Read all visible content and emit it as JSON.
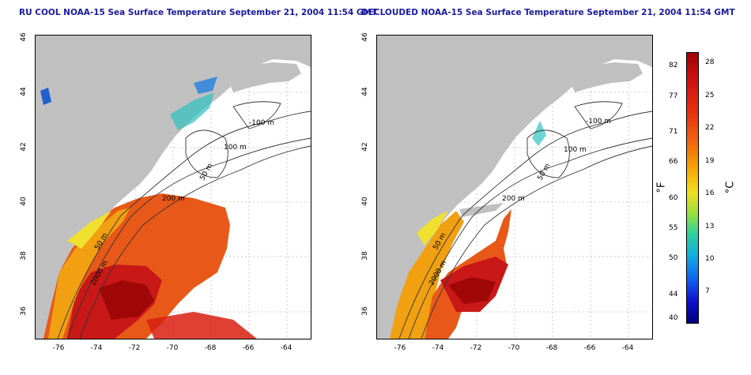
{
  "titles": {
    "left": "RU COOL NOAA-15 Sea Surface Temperature September 21, 2004 11:54 GMT",
    "right": "DECLOUDED NOAA-15 Sea Surface Temperature September 21, 2004 11:54 GMT"
  },
  "axes": {
    "lon_ticks": [
      "-76",
      "-74",
      "-72",
      "-70",
      "-68",
      "-66",
      "-64"
    ],
    "lat_ticks": [
      "46",
      "44",
      "42",
      "40",
      "38",
      "36"
    ]
  },
  "contour_labels": {
    "left": [
      "-100 m",
      "100 m",
      "50 m",
      "200 m",
      "50 m",
      "2000 m"
    ],
    "right": [
      "-100 m",
      "100 m",
      "50 m",
      "200 m",
      "50 m",
      "2000 m"
    ]
  },
  "colorbar": {
    "fahrenheit": [
      "82",
      "77",
      "71",
      "66",
      "60",
      "55",
      "50",
      "44",
      "40"
    ],
    "celsius": [
      "28",
      "25",
      "22",
      "19",
      "16",
      "13",
      "10",
      "7"
    ],
    "unit_f": "°F",
    "unit_c": "°C"
  }
}
